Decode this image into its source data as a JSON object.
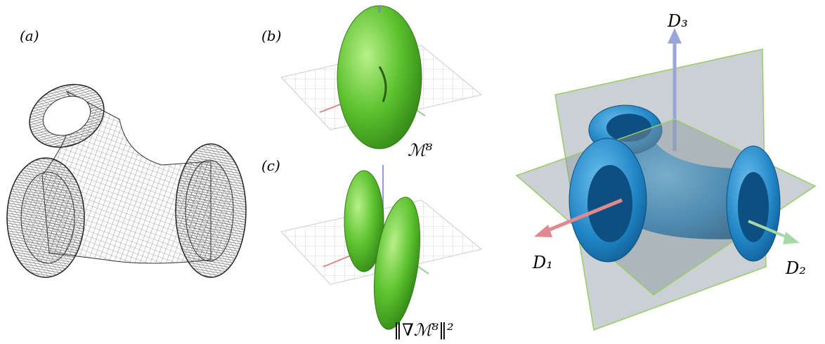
{
  "panels": {
    "a": {
      "label": "(a)"
    },
    "b": {
      "label": "(b)",
      "caption": "ℳ⁸"
    },
    "c": {
      "label": "(c)",
      "caption": "‖∇ℳ⁸‖²"
    }
  },
  "axes": {
    "d1": "D₁",
    "d2": "D₂",
    "d3": "D₃"
  }
}
